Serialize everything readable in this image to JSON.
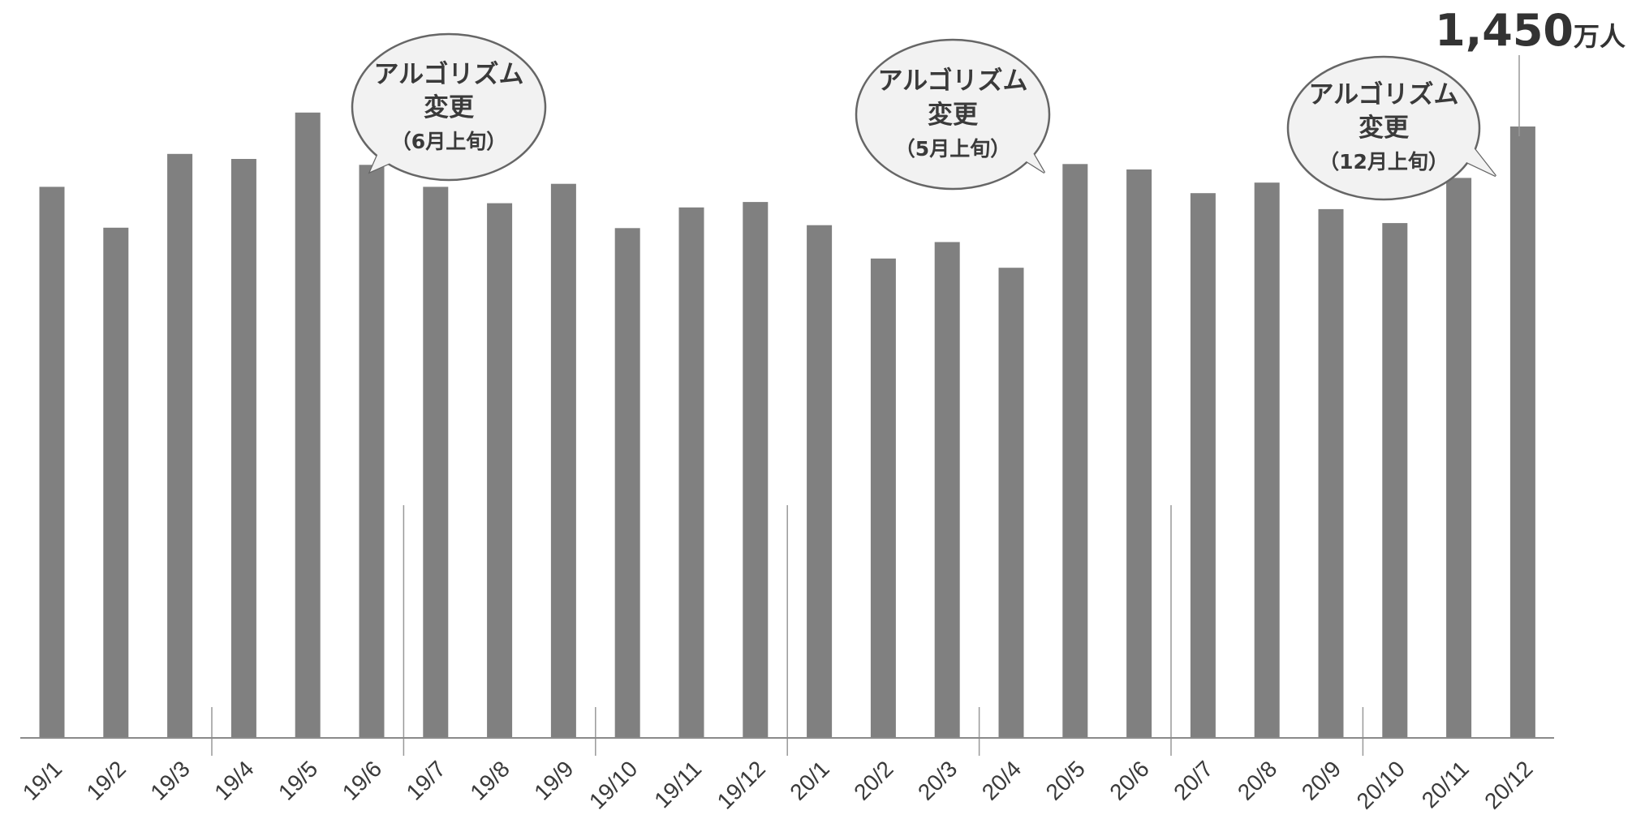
{
  "chart_data": {
    "type": "bar",
    "categories": [
      "19/1",
      "19/2",
      "19/3",
      "19/4",
      "19/5",
      "19/6",
      "19/7",
      "19/8",
      "19/9",
      "19/10",
      "19/11",
      "19/12",
      "20/1",
      "20/2",
      "20/3",
      "20/4",
      "20/5",
      "20/6",
      "20/7",
      "20/8",
      "20/9",
      "20/10",
      "20/11",
      "20/12"
    ],
    "values": [
      1307,
      1210,
      1385,
      1373,
      1483,
      1359,
      1307,
      1268,
      1314,
      1209,
      1258,
      1271,
      1216,
      1137,
      1176,
      1115,
      1361,
      1348,
      1292,
      1317,
      1254,
      1221,
      1328,
      1450
    ],
    "ylim": [
      0,
      1750
    ],
    "bar_color": "#808080",
    "grid": false,
    "peak_label": {
      "category": "20/12",
      "number": "1,450",
      "unit": "万人"
    },
    "annotations": [
      {
        "line1": "アルゴリズム",
        "line2": "変更",
        "line3": "（6月上旬）",
        "after_category": "19/6"
      },
      {
        "line1": "アルゴリズム",
        "line2": "変更",
        "line3": "（5月上旬）",
        "after_category": "20/5"
      },
      {
        "line1": "アルゴリズム",
        "line2": "変更",
        "line3": "（12月上旬）",
        "after_category": "20/12"
      }
    ]
  }
}
